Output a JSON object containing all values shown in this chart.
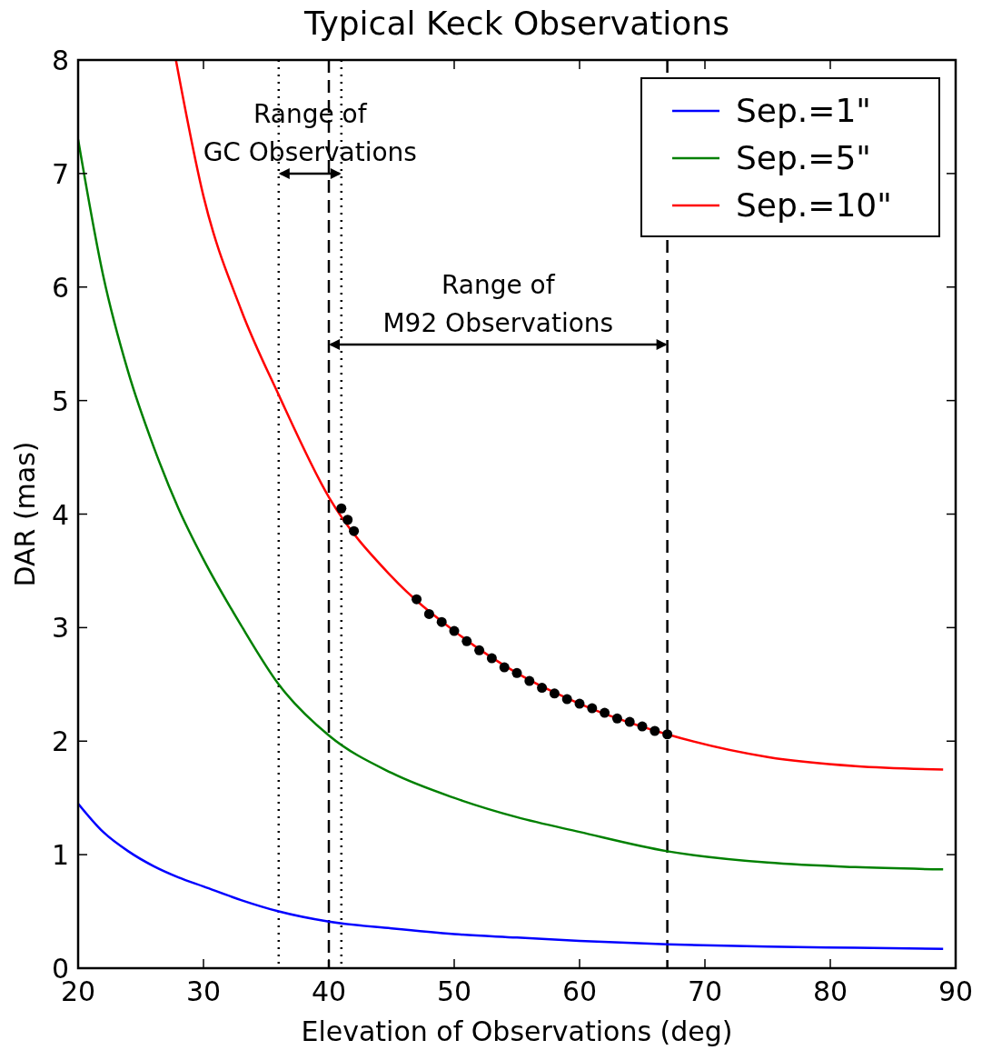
{
  "chart_data": {
    "type": "line",
    "title": "Typical Keck Observations",
    "xlabel": "Elevation of Observations (deg)",
    "ylabel": "DAR (mas)",
    "xlim": [
      20,
      90
    ],
    "ylim": [
      0,
      8
    ],
    "xticks": [
      20,
      30,
      40,
      50,
      60,
      70,
      80,
      90
    ],
    "yticks": [
      0,
      1,
      2,
      3,
      4,
      5,
      6,
      7,
      8
    ],
    "grid": false,
    "legend": "top right",
    "marker": "none",
    "line_style": "solid",
    "series": [
      {
        "name": "Sep.=1\"",
        "color": "#0000ff",
        "x": [
          20,
          22,
          24,
          26,
          28,
          30,
          33,
          36,
          40,
          45,
          50,
          55,
          60,
          67,
          75,
          82,
          89
        ],
        "values": [
          1.45,
          1.2,
          1.03,
          0.9,
          0.8,
          0.72,
          0.6,
          0.5,
          0.41,
          0.35,
          0.3,
          0.27,
          0.24,
          0.21,
          0.19,
          0.18,
          0.17
        ]
      },
      {
        "name": "Sep.=5\"",
        "color": "#008000",
        "x": [
          20,
          22,
          24,
          26,
          28,
          30,
          33,
          36,
          40,
          45,
          50,
          55,
          60,
          67,
          75,
          82,
          89
        ],
        "values": [
          7.3,
          6.1,
          5.25,
          4.6,
          4.05,
          3.6,
          3.02,
          2.5,
          2.05,
          1.72,
          1.5,
          1.33,
          1.2,
          1.03,
          0.93,
          0.89,
          0.87
        ]
      },
      {
        "name": "Sep.=10\"",
        "color": "#ff0000",
        "x": [
          27.8,
          30,
          33,
          36,
          40,
          45,
          50,
          55,
          60,
          67,
          75,
          82,
          89
        ],
        "values": [
          8.0,
          6.8,
          5.8,
          5.05,
          4.15,
          3.45,
          2.97,
          2.6,
          2.33,
          2.06,
          1.86,
          1.78,
          1.75
        ]
      },
      {
        "type": "scatter",
        "marker": "circle",
        "color": "#000000",
        "x": [
          41,
          41.5,
          42,
          47,
          48,
          49,
          50,
          51,
          52,
          53,
          54,
          55,
          56,
          57,
          58,
          59,
          60,
          61,
          62,
          63,
          64,
          65,
          66,
          67
        ],
        "values": [
          4.05,
          3.95,
          3.85,
          3.25,
          3.12,
          3.05,
          2.97,
          2.88,
          2.8,
          2.73,
          2.65,
          2.6,
          2.53,
          2.47,
          2.42,
          2.37,
          2.33,
          2.29,
          2.25,
          2.2,
          2.17,
          2.13,
          2.09,
          2.06
        ]
      }
    ],
    "ref_lines": [
      {
        "axis": "x",
        "value": 36,
        "line_style": "dotted",
        "color": "#000000"
      },
      {
        "axis": "x",
        "value": 41,
        "line_style": "dotted",
        "color": "#000000"
      },
      {
        "axis": "x",
        "value": 40,
        "line_style": "dashed",
        "color": "#000000"
      },
      {
        "axis": "x",
        "value": 67,
        "line_style": "dashed",
        "color": "#000000"
      }
    ],
    "annotations": [
      "Range of\nGC Observations",
      "Range of\nM92 Observations"
    ]
  }
}
